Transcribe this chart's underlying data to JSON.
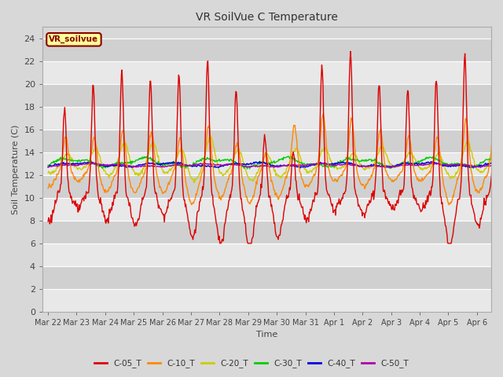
{
  "title": "VR SoilVue C Temperature",
  "xlabel": "Time",
  "ylabel": "Soil Temperature (C)",
  "ylim": [
    0,
    25
  ],
  "yticks": [
    0,
    2,
    4,
    6,
    8,
    10,
    12,
    14,
    16,
    18,
    20,
    22,
    24
  ],
  "bg_color": "#d8d8d8",
  "plot_bg_color": "#d8d8d8",
  "band_light": "#e8e8e8",
  "band_dark": "#d0d0d0",
  "grid_color": "white",
  "series_colors": {
    "C-05_T": "#dd0000",
    "C-10_T": "#ff8800",
    "C-20_T": "#cccc00",
    "C-30_T": "#00cc00",
    "C-40_T": "#0000dd",
    "C-50_T": "#aa00aa"
  },
  "legend_label": "VR_soilvue",
  "legend_box_color": "#ffff99",
  "legend_text_color": "#880000",
  "tick_labels": [
    "Mar 22",
    "Mar 23",
    "Mar 24",
    "Mar 25",
    "Mar 26",
    "Mar 27",
    "Mar 28",
    "Mar 29",
    "Mar 30",
    "Mar 31",
    "Apr 1",
    "Apr 2",
    "Apr 3",
    "Apr 4",
    "Apr 5",
    "Apr 6"
  ]
}
